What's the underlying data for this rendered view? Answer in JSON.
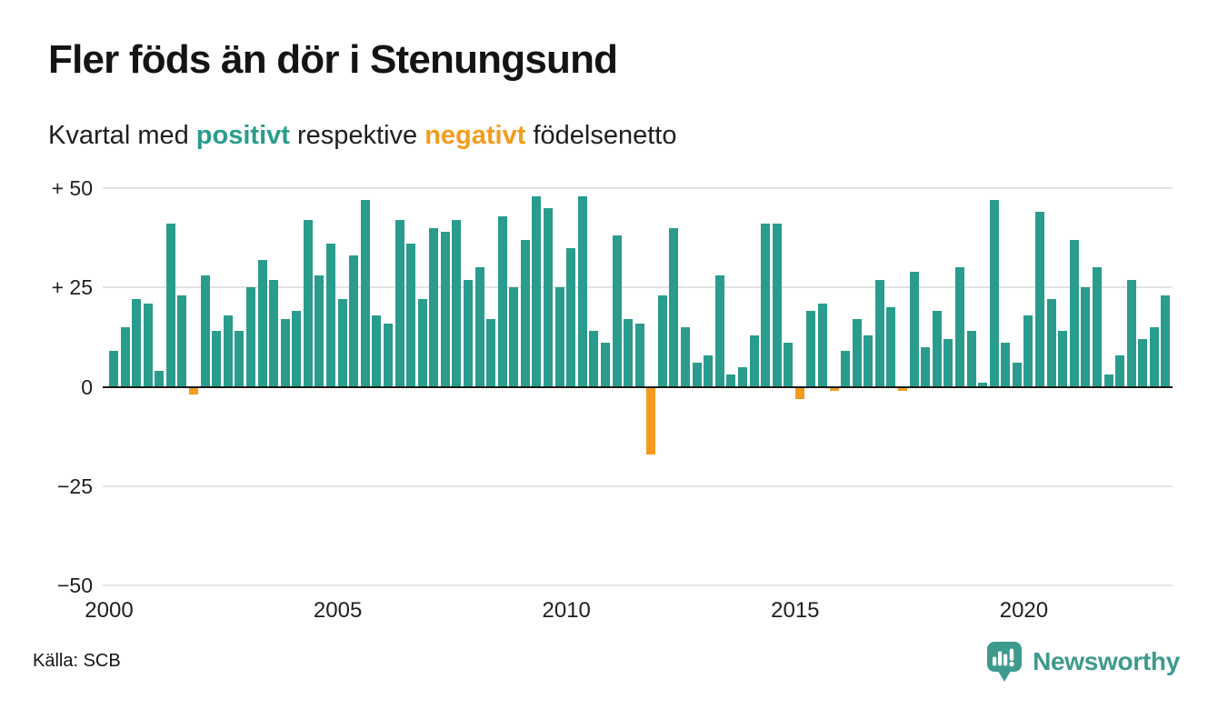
{
  "header": {
    "title": "Fler föds än dör i Stenungsund",
    "subtitle": {
      "prefix": "Kvartal med ",
      "positive_word": "positivt",
      "middle": " respektive ",
      "negative_word": "negativt",
      "suffix": " födelsenetto"
    }
  },
  "colors": {
    "positive": "#2A9C8D",
    "negative": "#F39C1C",
    "brand": "#3E9A8D",
    "grid": "#E3E3E3",
    "axis": "#1A1A1A"
  },
  "chart_data": {
    "type": "bar",
    "title": "Fler föds än dör i Stenungsund",
    "subtitle": "Kvartal med positivt respektive negativt födelsenetto",
    "frequency": "quarterly",
    "start_year": 2000,
    "start_quarter": 1,
    "values": [
      9,
      15,
      22,
      21,
      4,
      41,
      23,
      -2,
      28,
      14,
      18,
      14,
      25,
      32,
      27,
      17,
      19,
      42,
      28,
      36,
      22,
      33,
      47,
      18,
      16,
      42,
      36,
      22,
      40,
      39,
      42,
      27,
      30,
      17,
      43,
      25,
      37,
      48,
      45,
      25,
      35,
      48,
      14,
      11,
      38,
      17,
      16,
      -17,
      23,
      40,
      15,
      6,
      8,
      28,
      3,
      5,
      13,
      41,
      41,
      11,
      -3,
      19,
      21,
      -1,
      9,
      17,
      13,
      27,
      20,
      -1,
      29,
      10,
      19,
      12,
      30,
      14,
      1,
      47,
      11,
      6,
      18,
      44,
      22,
      14,
      37,
      25,
      30,
      3,
      8,
      27,
      12,
      15,
      23
    ],
    "ylim": [
      -50,
      50
    ],
    "yticks": [
      {
        "value": 50,
        "label": "+ 50"
      },
      {
        "value": 25,
        "label": "+ 25"
      },
      {
        "value": 0,
        "label": "0"
      },
      {
        "value": -25,
        "label": "−25"
      },
      {
        "value": -50,
        "label": "−50"
      }
    ],
    "xticks": [
      {
        "year": 2000,
        "label": "2000"
      },
      {
        "year": 2005,
        "label": "2005"
      },
      {
        "year": 2010,
        "label": "2010"
      },
      {
        "year": 2015,
        "label": "2015"
      },
      {
        "year": 2020,
        "label": "2020"
      }
    ],
    "grid": true,
    "legend_position": "inline-in-subtitle"
  },
  "footer": {
    "source": "Källa: SCB",
    "brand": "Newsworthy"
  }
}
